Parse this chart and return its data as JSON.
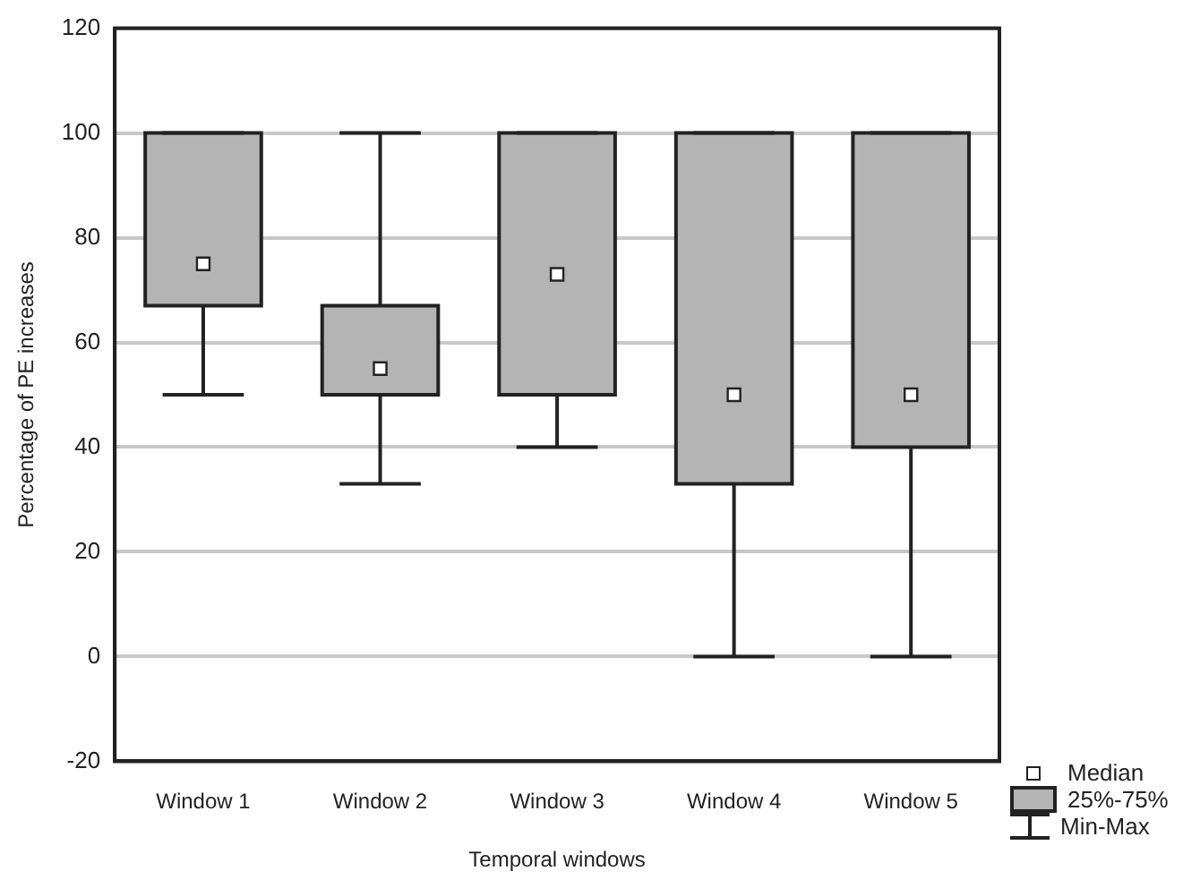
{
  "chart_data": {
    "type": "box",
    "xlabel": "Temporal windows",
    "ylabel": "Percentage of PE increases",
    "categories": [
      "Window 1",
      "Window 2",
      "Window 3",
      "Window 4",
      "Window 5"
    ],
    "boxes": [
      {
        "low": 50,
        "q1": 67,
        "median": 75,
        "q3": 100,
        "high": 100
      },
      {
        "low": 33,
        "q1": 50,
        "median": 55,
        "q3": 67,
        "high": 100
      },
      {
        "low": 40,
        "q1": 50,
        "median": 73,
        "q3": 100,
        "high": 100
      },
      {
        "low": 0,
        "q1": 33,
        "median": 50,
        "q3": 100,
        "high": 100
      },
      {
        "low": 0,
        "q1": 40,
        "median": 50,
        "q3": 100,
        "high": 100
      }
    ],
    "color": "#b4b4b4",
    "ylim": [
      -20,
      120
    ],
    "yticks": [
      -20,
      0,
      20,
      40,
      60,
      80,
      100,
      120
    ],
    "grid": "y",
    "annotations": [
      "Median",
      "25%-75%",
      "Min-Max"
    ]
  }
}
